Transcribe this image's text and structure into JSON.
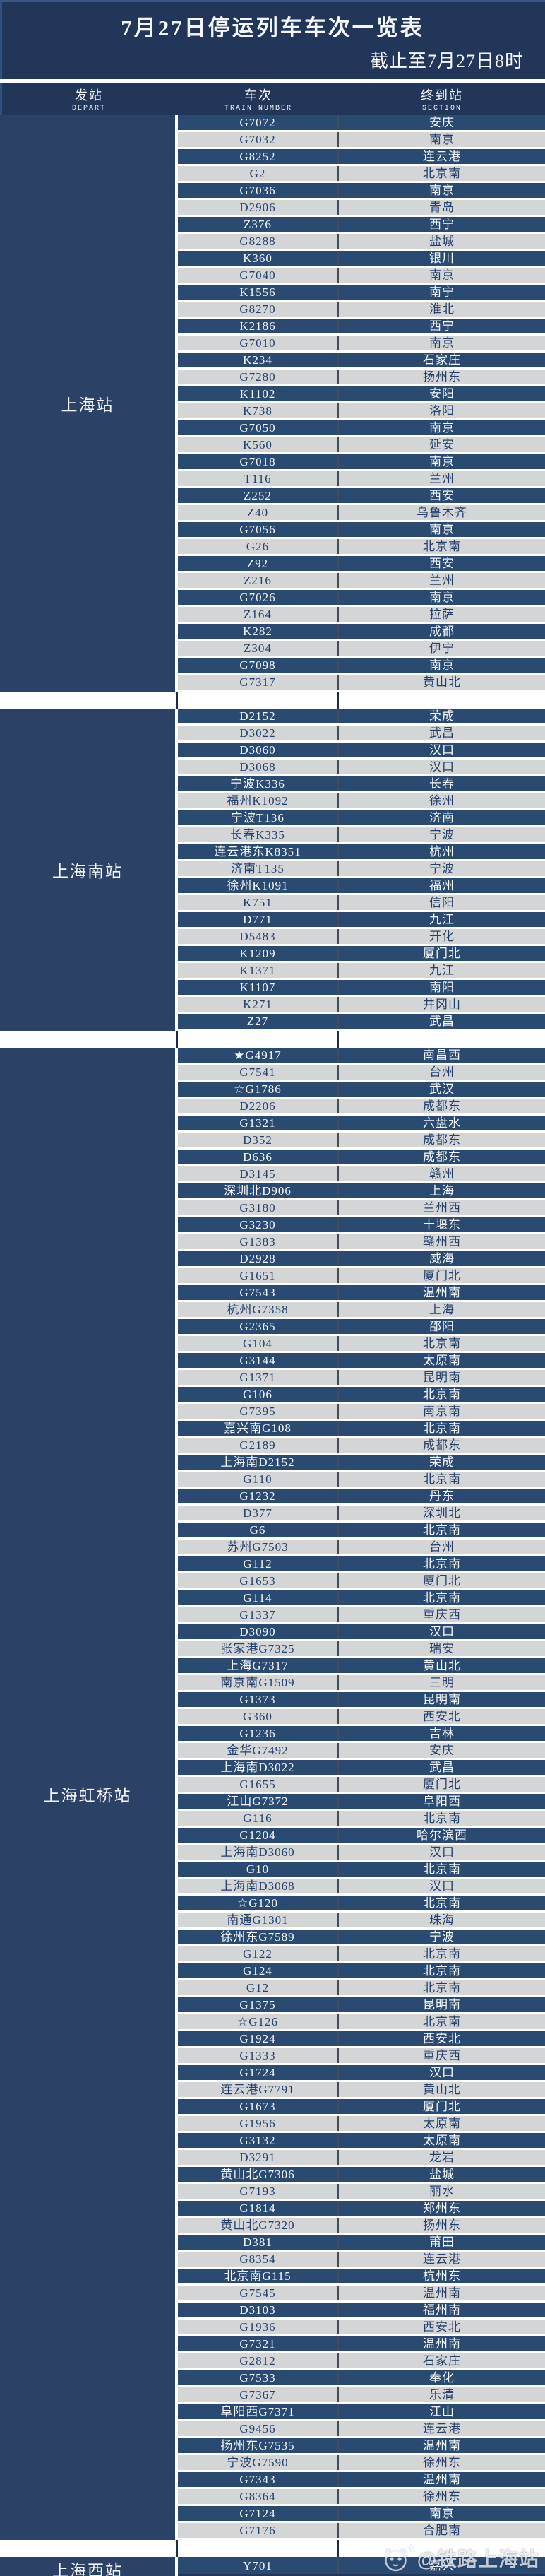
{
  "title": "7月27日停运列车车次一览表",
  "subtitle": "截止至7月27日8时",
  "watermark": "@铁路上海站",
  "columns": {
    "depart_zh": "发站",
    "depart_en": "DEPART",
    "train_zh": "车次",
    "train_en": "TRAIN NUMBER",
    "section_zh": "终到站",
    "section_en": "SECTION"
  },
  "colors": {
    "page_bg": "#22365a",
    "depart_cell_bg": "#2c4166",
    "row_dark_bg": "#2a4a72",
    "row_light_bg": "#d4d5d7",
    "row_dark_text": "#f4f6fa",
    "row_light_text": "#24406a",
    "gridline": "#ffffff",
    "train_divider": "#454b57"
  },
  "groups": [
    {
      "station": "上海站",
      "rows": [
        {
          "train": "G7072",
          "dest": "安庆"
        },
        {
          "train": "G7032",
          "dest": "南京"
        },
        {
          "train": "G8252",
          "dest": "连云港"
        },
        {
          "train": "G2",
          "dest": "北京南"
        },
        {
          "train": "G7036",
          "dest": "南京"
        },
        {
          "train": "D2906",
          "dest": "青岛"
        },
        {
          "train": "Z376",
          "dest": "西宁"
        },
        {
          "train": "G8288",
          "dest": "盐城"
        },
        {
          "train": "K360",
          "dest": "银川"
        },
        {
          "train": "G7040",
          "dest": "南京"
        },
        {
          "train": "K1556",
          "dest": "南宁"
        },
        {
          "train": "G8270",
          "dest": "淮北"
        },
        {
          "train": "K2186",
          "dest": "西宁"
        },
        {
          "train": "G7010",
          "dest": "南京"
        },
        {
          "train": "K234",
          "dest": "石家庄"
        },
        {
          "train": "G7280",
          "dest": "扬州东"
        },
        {
          "train": "K1102",
          "dest": "安阳"
        },
        {
          "train": "K738",
          "dest": "洛阳"
        },
        {
          "train": "G7050",
          "dest": "南京"
        },
        {
          "train": "K560",
          "dest": "延安"
        },
        {
          "train": "G7018",
          "dest": "南京"
        },
        {
          "train": "T116",
          "dest": "兰州"
        },
        {
          "train": "Z252",
          "dest": "西安"
        },
        {
          "train": "Z40",
          "dest": "乌鲁木齐"
        },
        {
          "train": "G7056",
          "dest": "南京"
        },
        {
          "train": "G26",
          "dest": "北京南"
        },
        {
          "train": "Z92",
          "dest": "西安"
        },
        {
          "train": "Z216",
          "dest": "兰州"
        },
        {
          "train": "G7026",
          "dest": "南京"
        },
        {
          "train": "Z164",
          "dest": "拉萨"
        },
        {
          "train": "K282",
          "dest": "成都"
        },
        {
          "train": "Z304",
          "dest": "伊宁"
        },
        {
          "train": "G7098",
          "dest": "南京"
        },
        {
          "train": "G7317",
          "dest": "黄山北"
        }
      ]
    },
    {
      "station": "上海南站",
      "rows": [
        {
          "train": "D2152",
          "dest": "荣成"
        },
        {
          "train": "D3022",
          "dest": "武昌"
        },
        {
          "train": "D3060",
          "dest": "汉口"
        },
        {
          "train": "D3068",
          "dest": "汉口"
        },
        {
          "train": "宁波K336",
          "dest": "长春"
        },
        {
          "train": "福州K1092",
          "dest": "徐州"
        },
        {
          "train": "宁波T136",
          "dest": "济南"
        },
        {
          "train": "长春K335",
          "dest": "宁波"
        },
        {
          "train": "连云港东K8351",
          "dest": "杭州"
        },
        {
          "train": "济南T135",
          "dest": "宁波"
        },
        {
          "train": "徐州K1091",
          "dest": "福州"
        },
        {
          "train": "K751",
          "dest": "信阳"
        },
        {
          "train": "D771",
          "dest": "九江"
        },
        {
          "train": "D5483",
          "dest": "开化"
        },
        {
          "train": "K1209",
          "dest": "厦门北"
        },
        {
          "train": "K1371",
          "dest": "九江"
        },
        {
          "train": "K1107",
          "dest": "南阳"
        },
        {
          "train": "K271",
          "dest": "井冈山"
        },
        {
          "train": "Z27",
          "dest": "武昌"
        }
      ]
    },
    {
      "station": "上海虹桥站",
      "rows": [
        {
          "train": "★G4917",
          "dest": "南昌西"
        },
        {
          "train": "G7541",
          "dest": "台州"
        },
        {
          "train": "☆G1786",
          "dest": "武汉"
        },
        {
          "train": "D2206",
          "dest": "成都东"
        },
        {
          "train": "G1321",
          "dest": "六盘水"
        },
        {
          "train": "D352",
          "dest": "成都东"
        },
        {
          "train": "D636",
          "dest": "成都东"
        },
        {
          "train": "D3145",
          "dest": "赣州"
        },
        {
          "train": "深圳北D906",
          "dest": "上海"
        },
        {
          "train": "G3180",
          "dest": "兰州西"
        },
        {
          "train": "G3230",
          "dest": "十堰东"
        },
        {
          "train": "G1383",
          "dest": "赣州西"
        },
        {
          "train": "D2928",
          "dest": "威海"
        },
        {
          "train": "G1651",
          "dest": "厦门北"
        },
        {
          "train": "G7543",
          "dest": "温州南"
        },
        {
          "train": "杭州G7358",
          "dest": "上海"
        },
        {
          "train": "G2365",
          "dest": "邵阳"
        },
        {
          "train": "G104",
          "dest": "北京南"
        },
        {
          "train": "G3144",
          "dest": "太原南"
        },
        {
          "train": "G1371",
          "dest": "昆明南"
        },
        {
          "train": "G106",
          "dest": "北京南"
        },
        {
          "train": "G7395",
          "dest": "南京南"
        },
        {
          "train": "嘉兴南G108",
          "dest": "北京南"
        },
        {
          "train": "G2189",
          "dest": "成都东"
        },
        {
          "train": "上海南D2152",
          "dest": "荣成"
        },
        {
          "train": "G110",
          "dest": "北京南"
        },
        {
          "train": "G1232",
          "dest": "丹东"
        },
        {
          "train": "D377",
          "dest": "深圳北"
        },
        {
          "train": "G6",
          "dest": "北京南"
        },
        {
          "train": "苏州G7503",
          "dest": "台州"
        },
        {
          "train": "G112",
          "dest": "北京南"
        },
        {
          "train": "G1653",
          "dest": "厦门北"
        },
        {
          "train": "G114",
          "dest": "北京南"
        },
        {
          "train": "G1337",
          "dest": "重庆西"
        },
        {
          "train": "D3090",
          "dest": "汉口"
        },
        {
          "train": "张家港G7325",
          "dest": "瑞安"
        },
        {
          "train": "上海G7317",
          "dest": "黄山北"
        },
        {
          "train": "南京南G1509",
          "dest": "三明"
        },
        {
          "train": "G1373",
          "dest": "昆明南"
        },
        {
          "train": "G360",
          "dest": "西安北"
        },
        {
          "train": "G1236",
          "dest": "吉林"
        },
        {
          "train": "金华G7492",
          "dest": "安庆"
        },
        {
          "train": "上海南D3022",
          "dest": "武昌"
        },
        {
          "train": "G1655",
          "dest": "厦门北"
        },
        {
          "train": "江山G7372",
          "dest": "阜阳西"
        },
        {
          "train": "G116",
          "dest": "北京南"
        },
        {
          "train": "G1204",
          "dest": "哈尔滨西"
        },
        {
          "train": "上海南D3060",
          "dest": "汉口"
        },
        {
          "train": "G10",
          "dest": "北京南"
        },
        {
          "train": "上海南D3068",
          "dest": "汉口"
        },
        {
          "train": "☆G120",
          "dest": "北京南"
        },
        {
          "train": "南通G1301",
          "dest": "珠海"
        },
        {
          "train": "徐州东G7589",
          "dest": "宁波"
        },
        {
          "train": "G122",
          "dest": "北京南"
        },
        {
          "train": "G124",
          "dest": "北京南"
        },
        {
          "train": "G12",
          "dest": "北京南"
        },
        {
          "train": "G1375",
          "dest": "昆明南"
        },
        {
          "train": "☆G126",
          "dest": "北京南"
        },
        {
          "train": "G1924",
          "dest": "西安北"
        },
        {
          "train": "G1333",
          "dest": "重庆西"
        },
        {
          "train": "G1724",
          "dest": "汉口"
        },
        {
          "train": "连云港G7791",
          "dest": "黄山北"
        },
        {
          "train": "G1673",
          "dest": "厦门北"
        },
        {
          "train": "G1956",
          "dest": "太原南"
        },
        {
          "train": "G3132",
          "dest": "太原南"
        },
        {
          "train": "D3291",
          "dest": "龙岩"
        },
        {
          "train": "黄山北G7306",
          "dest": "盐城"
        },
        {
          "train": "G7193",
          "dest": "丽水"
        },
        {
          "train": "G1814",
          "dest": "郑州东"
        },
        {
          "train": "黄山北G7320",
          "dest": "扬州东"
        },
        {
          "train": "D381",
          "dest": "莆田"
        },
        {
          "train": "G8354",
          "dest": "连云港"
        },
        {
          "train": "北京南G115",
          "dest": "杭州东"
        },
        {
          "train": "G7545",
          "dest": "温州南"
        },
        {
          "train": "D3103",
          "dest": "福州南"
        },
        {
          "train": "G1936",
          "dest": "西安北"
        },
        {
          "train": "G7321",
          "dest": "温州南"
        },
        {
          "train": "G2812",
          "dest": "石家庄"
        },
        {
          "train": "G7533",
          "dest": "奉化"
        },
        {
          "train": "G7367",
          "dest": "乐清"
        },
        {
          "train": "阜阳西G7371",
          "dest": "江山"
        },
        {
          "train": "G9456",
          "dest": "连云港"
        },
        {
          "train": "扬州东G7535",
          "dest": "温州南"
        },
        {
          "train": "宁波G7590",
          "dest": "徐州东"
        },
        {
          "train": "G7343",
          "dest": "温州南"
        },
        {
          "train": "G8364",
          "dest": "徐州东"
        },
        {
          "train": "G7124",
          "dest": "南京"
        },
        {
          "train": "G7176",
          "dest": "合肥南"
        }
      ]
    },
    {
      "station": "上海西站",
      "rows": [
        {
          "train": "Y701",
          "dest": "嘉兴"
        }
      ]
    }
  ]
}
